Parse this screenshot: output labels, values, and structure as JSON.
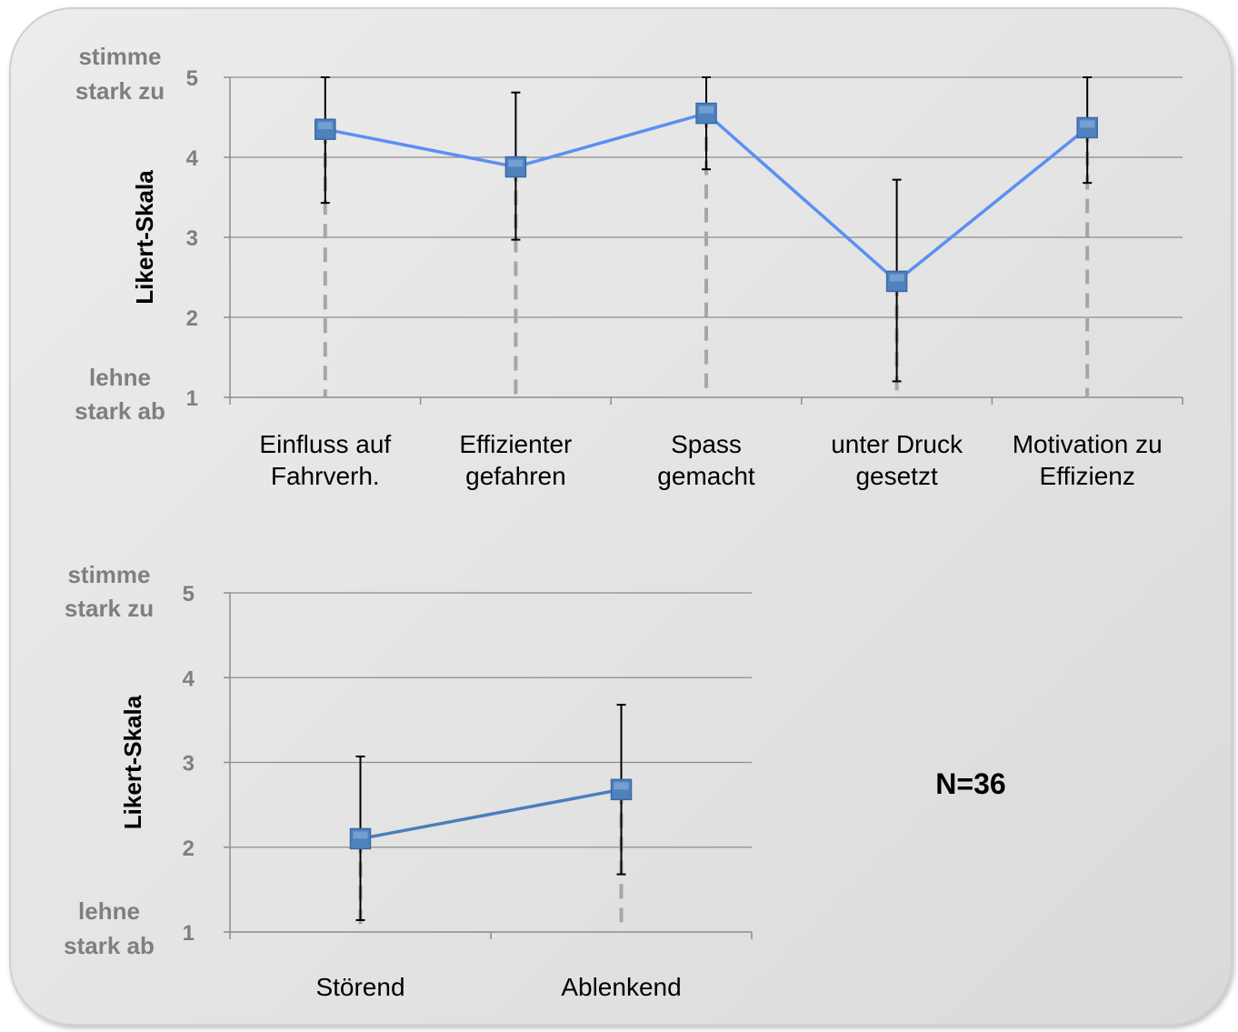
{
  "chart_data": [
    {
      "type": "line",
      "ylabel": "Likert-Skala",
      "ylim": [
        1,
        5
      ],
      "yticks": [
        1,
        2,
        3,
        4,
        5
      ],
      "y_top_label": [
        "stimme",
        "stark zu"
      ],
      "y_bottom_label": [
        "lehne",
        "stark ab"
      ],
      "categories": [
        [
          "Einfluss auf",
          "Fahrverh."
        ],
        [
          "Effizienter",
          "gefahren"
        ],
        [
          "Spass",
          "gemacht"
        ],
        [
          "unter Druck",
          "gesetzt"
        ],
        [
          "Motivation zu",
          "Effizienz"
        ]
      ],
      "values": [
        4.35,
        3.88,
        4.55,
        2.45,
        4.37
      ],
      "error_low": [
        3.43,
        2.97,
        3.85,
        1.2,
        3.68
      ],
      "error_high": [
        5.0,
        4.81,
        5.0,
        3.72,
        5.0
      ],
      "line_color": "#5b8ff3",
      "marker_color": "#4f81bd",
      "grid": true
    },
    {
      "type": "line",
      "ylabel": "Likert-Skala",
      "ylim": [
        1,
        5
      ],
      "yticks": [
        1,
        2,
        3,
        4,
        5
      ],
      "y_top_label": [
        "stimme",
        "stark zu"
      ],
      "y_bottom_label": [
        "lehne",
        "stark ab"
      ],
      "categories": [
        [
          "Störend"
        ],
        [
          "Ablenkend"
        ]
      ],
      "values": [
        2.1,
        2.68
      ],
      "error_low": [
        1.14,
        1.68
      ],
      "error_high": [
        3.07,
        3.68
      ],
      "line_color": "#4a7ebb",
      "marker_color": "#4f81bd",
      "grid": true
    }
  ],
  "annotation": "N=36"
}
